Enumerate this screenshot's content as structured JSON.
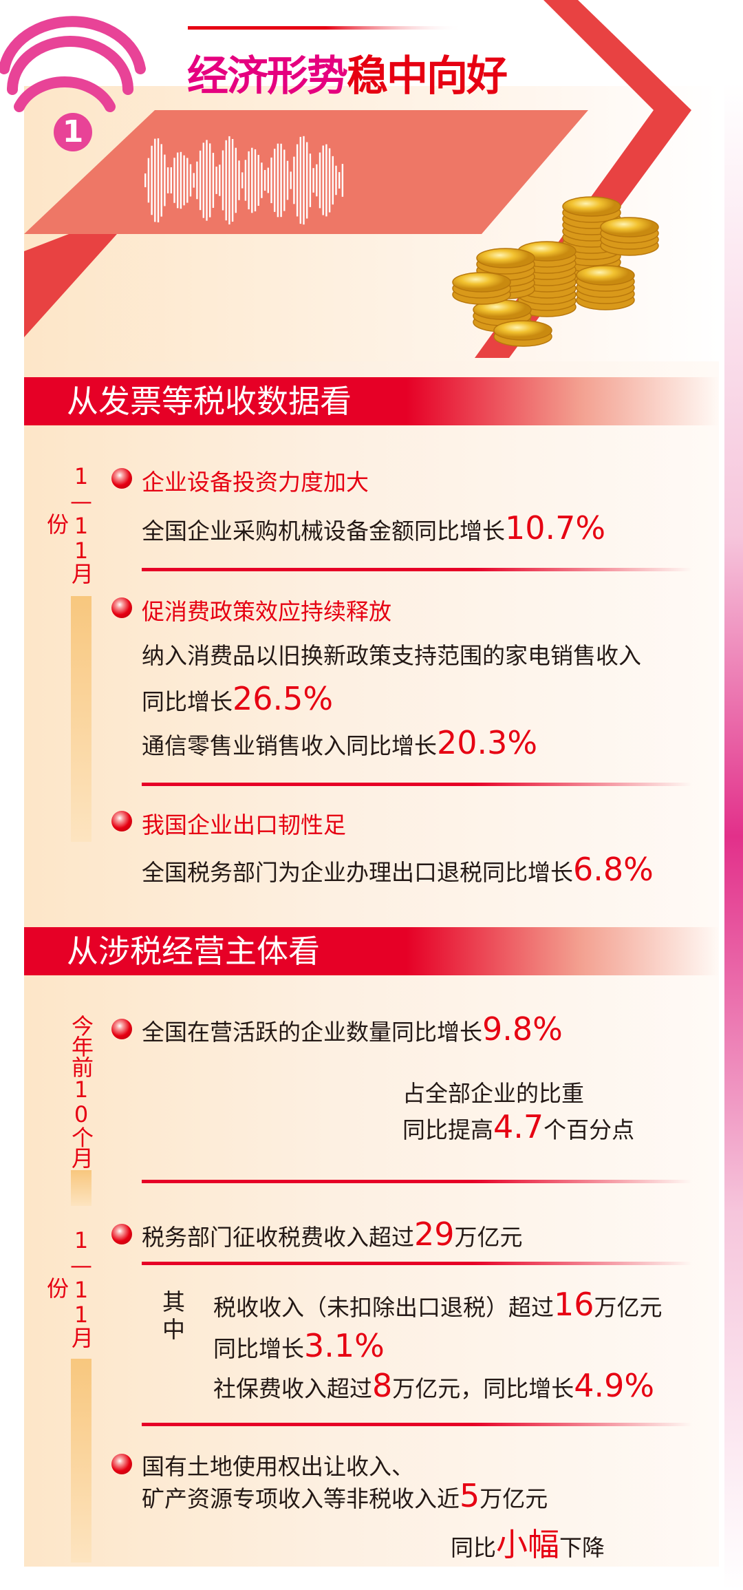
{
  "header": {
    "number": "1",
    "title_part1": "经济形势",
    "title_part2": "稳中向好"
  },
  "section1": {
    "banner": "从发票等税收数据看",
    "period_label": "1—11月份",
    "items": [
      {
        "heading": "企业设备投资力度加大",
        "lines": [
          {
            "text": "全国企业采购机械设备金额同比增长",
            "value": "10.7%"
          }
        ]
      },
      {
        "heading": "促消费政策效应持续释放",
        "line1": "纳入消费品以旧换新政策支持范围的家电销售收入",
        "line2_text": "同比增长",
        "line2_value": "26.5%",
        "line3_text": "通信零售业销售收入同比增长",
        "line3_value": "20.3%"
      },
      {
        "heading": "我国企业出口韧性足",
        "lines": [
          {
            "text": "全国税务部门为企业办理出口退税同比增长",
            "value": "6.8%"
          }
        ]
      }
    ]
  },
  "section2": {
    "banner": "从涉税经营主体看",
    "period_label_1": "今年前10个月",
    "period_label_2": "1—11月份",
    "active": {
      "text": "全国在营活跃的企业数量同比增长",
      "value": "9.8%",
      "share_line": "占全部企业的比重",
      "share_text": "同比提高",
      "share_value": "4.7",
      "share_unit": "个百分点"
    },
    "tax_revenue": {
      "text": "税务部门征收税费收入超过",
      "value": "29",
      "unit": "万亿元"
    },
    "of_which_label": "其中",
    "tax": {
      "text": "税收收入（未扣除出口退税）超过",
      "value": "16",
      "unit": "万亿元",
      "growth_text": "同比增长",
      "growth_value": "3.1%"
    },
    "social": {
      "text": "社保费收入超过",
      "value": "8",
      "unit": "万亿元，同比增长",
      "growth_value": "4.9%"
    },
    "nontax": {
      "line1": "国有土地使用权出让收入、",
      "line2": "矿产资源专项收入等非税收入近",
      "value": "5",
      "unit": "万亿元",
      "change_pre": "同比",
      "change_value": "小幅",
      "change_post": "下降"
    }
  },
  "colors": {
    "red": "#e60012",
    "magenta": "#e5007f",
    "banner": "#e60026",
    "bar": "#f8c77e"
  }
}
